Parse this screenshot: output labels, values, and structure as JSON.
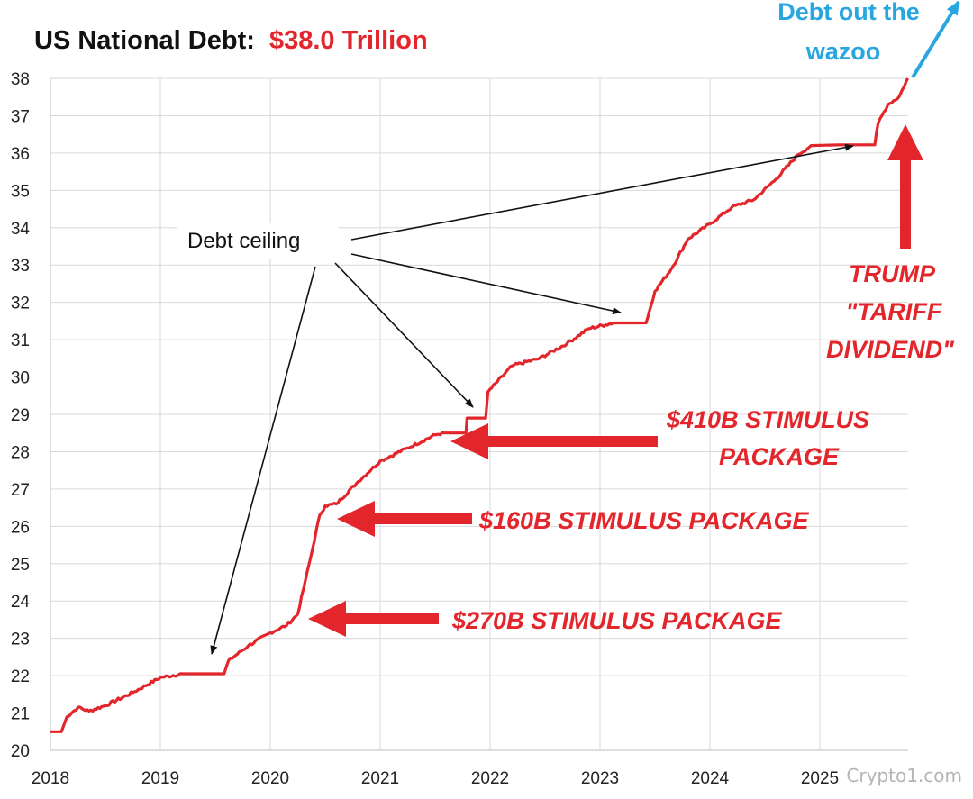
{
  "chart_data": {
    "type": "line",
    "title": "US National Debt:",
    "title_value": "$38.0 Trillion",
    "xlabel": "",
    "ylabel": "",
    "xlim": [
      2018,
      2025.8
    ],
    "ylim": [
      20,
      38
    ],
    "x_ticks": [
      "2018",
      "2019",
      "2020",
      "2021",
      "2022",
      "2023",
      "2024",
      "2025"
    ],
    "y_ticks": [
      "20",
      "21",
      "22",
      "23",
      "24",
      "25",
      "26",
      "27",
      "28",
      "29",
      "30",
      "31",
      "32",
      "33",
      "34",
      "35",
      "36",
      "37",
      "38"
    ],
    "grid": true,
    "series": [
      {
        "name": "US National Debt (Trillions $)",
        "color": "#e3262c",
        "points": [
          [
            2018.0,
            20.5
          ],
          [
            2018.1,
            20.5
          ],
          [
            2018.15,
            20.9
          ],
          [
            2018.25,
            21.15
          ],
          [
            2018.35,
            21.05
          ],
          [
            2018.5,
            21.2
          ],
          [
            2018.75,
            21.55
          ],
          [
            2019.0,
            21.95
          ],
          [
            2019.2,
            22.05
          ],
          [
            2019.4,
            22.05
          ],
          [
            2019.58,
            22.05
          ],
          [
            2019.62,
            22.4
          ],
          [
            2019.8,
            22.8
          ],
          [
            2020.0,
            23.15
          ],
          [
            2020.15,
            23.35
          ],
          [
            2020.25,
            23.65
          ],
          [
            2020.3,
            24.3
          ],
          [
            2020.37,
            25.2
          ],
          [
            2020.45,
            26.3
          ],
          [
            2020.5,
            26.55
          ],
          [
            2020.6,
            26.6
          ],
          [
            2020.8,
            27.2
          ],
          [
            2021.0,
            27.75
          ],
          [
            2021.25,
            28.1
          ],
          [
            2021.5,
            28.45
          ],
          [
            2021.58,
            28.5
          ],
          [
            2021.78,
            28.5
          ],
          [
            2021.79,
            28.9
          ],
          [
            2021.96,
            28.9
          ],
          [
            2021.98,
            29.6
          ],
          [
            2022.2,
            30.3
          ],
          [
            2022.45,
            30.5
          ],
          [
            2022.7,
            30.9
          ],
          [
            2022.9,
            31.3
          ],
          [
            2023.05,
            31.4
          ],
          [
            2023.12,
            31.45
          ],
          [
            2023.42,
            31.45
          ],
          [
            2023.5,
            32.3
          ],
          [
            2023.65,
            32.9
          ],
          [
            2023.8,
            33.7
          ],
          [
            2024.0,
            34.1
          ],
          [
            2024.2,
            34.55
          ],
          [
            2024.4,
            34.75
          ],
          [
            2024.6,
            35.3
          ],
          [
            2024.8,
            35.95
          ],
          [
            2024.92,
            36.2
          ],
          [
            2025.2,
            36.22
          ],
          [
            2025.5,
            36.22
          ],
          [
            2025.53,
            36.8
          ],
          [
            2025.62,
            37.3
          ],
          [
            2025.72,
            37.5
          ],
          [
            2025.8,
            38.0
          ]
        ]
      }
    ],
    "annotations": {
      "debt_ceiling": "Debt ceiling",
      "wazoo_line1": "Debt out the",
      "wazoo_line2": "wazoo",
      "trump_line1": "TRUMP",
      "trump_line2": "\"TARIFF",
      "trump_line3": "DIVIDEND\"",
      "stim410_line1": "$410B STIMULUS",
      "stim410_line2": "PACKAGE",
      "stim160": "$160B STIMULUS PACKAGE",
      "stim270": "$270B STIMULUS PACKAGE"
    }
  },
  "watermark": "Crypto1.com",
  "colors": {
    "line": "#e3262c",
    "annotation_red": "#e3262c",
    "annotation_blue": "#29a6e0",
    "grid": "#d9d9d9"
  }
}
